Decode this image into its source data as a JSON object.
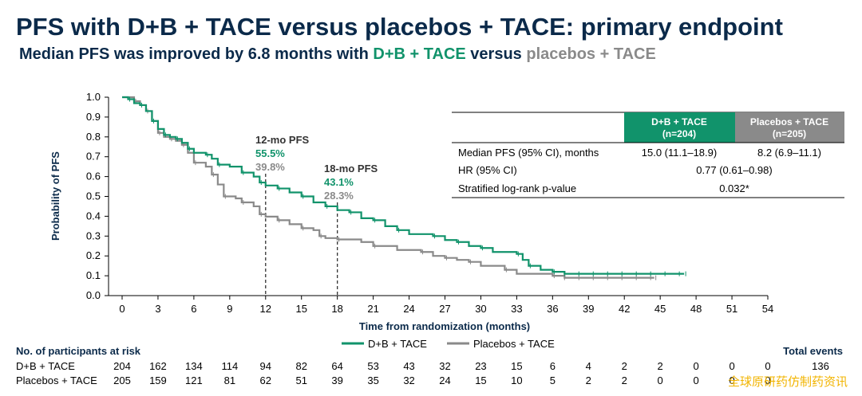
{
  "header": {
    "title": "PFS with D+B + TACE versus placebos + TACE: primary endpoint",
    "subtitle_pre": "Median PFS was improved by 6.8 months with ",
    "subtitle_arm1": "D+B + TACE",
    "subtitle_mid": " versus ",
    "subtitle_arm2": "placebos + TACE"
  },
  "colors": {
    "db": "#11936b",
    "placebo": "#8a8a8a",
    "title": "#0b2a4a"
  },
  "table": {
    "col1_header_a": "D+B + TACE",
    "col1_header_b": "(n=204)",
    "col2_header_a": "Placebos + TACE",
    "col2_header_b": "(n=205)",
    "rows": [
      {
        "label": "Median PFS (95% CI), months",
        "v1": "15.0 (11.1–18.9)",
        "v2": "8.2 (6.9–11.1)"
      },
      {
        "label": "HR (95% CI)",
        "merged": "0.77 (0.61–0.98)"
      },
      {
        "label": "Stratified log-rank p-value",
        "merged": "0.032*"
      }
    ]
  },
  "annotations": [
    {
      "title": "12-mo PFS",
      "db_value": "55.5%",
      "pl_value": "39.8%",
      "month": 12
    },
    {
      "title": "18-mo PFS",
      "db_value": "43.1%",
      "pl_value": "28.3%",
      "month": 18
    }
  ],
  "risk_table": {
    "header": "No. of participants at risk",
    "total_header": "Total events",
    "rows": [
      {
        "label": "D+B + TACE",
        "values": [
          "204",
          "162",
          "134",
          "114",
          "94",
          "82",
          "64",
          "53",
          "43",
          "32",
          "23",
          "15",
          "6",
          "4",
          "2",
          "2",
          "0",
          "0",
          "0"
        ],
        "total": "136"
      },
      {
        "label": "Placebos + TACE",
        "values": [
          "205",
          "159",
          "121",
          "81",
          "62",
          "51",
          "39",
          "35",
          "32",
          "24",
          "15",
          "10",
          "5",
          "2",
          "2",
          "0",
          "0",
          "0",
          "0"
        ],
        "total": ""
      }
    ]
  },
  "watermark": "全球原研药仿制药资讯",
  "chart_data": {
    "type": "line",
    "title": "",
    "xlabel": "Time from randomization (months)",
    "ylabel": "Probability of PFS",
    "xlim": [
      0,
      54
    ],
    "ylim": [
      0,
      1.0
    ],
    "xticks": [
      "0",
      "3",
      "6",
      "9",
      "12",
      "15",
      "18",
      "21",
      "24",
      "27",
      "30",
      "33",
      "36",
      "39",
      "42",
      "45",
      "48",
      "51",
      "54"
    ],
    "yticks": [
      "0.0",
      "0.1",
      "0.2",
      "0.3",
      "0.4",
      "0.5",
      "0.6",
      "0.7",
      "0.8",
      "0.9",
      "1.0"
    ],
    "legend": "bottom-center",
    "series": [
      {
        "name": "D+B + TACE",
        "points": [
          [
            0,
            1.0
          ],
          [
            0.5,
            0.99
          ],
          [
            1,
            0.97
          ],
          [
            1.5,
            0.96
          ],
          [
            2,
            0.93
          ],
          [
            2.5,
            0.88
          ],
          [
            3,
            0.84
          ],
          [
            3.5,
            0.81
          ],
          [
            4,
            0.8
          ],
          [
            4.5,
            0.79
          ],
          [
            5,
            0.77
          ],
          [
            5.5,
            0.74
          ],
          [
            6,
            0.72
          ],
          [
            7,
            0.71
          ],
          [
            7.5,
            0.69
          ],
          [
            8,
            0.66
          ],
          [
            9,
            0.65
          ],
          [
            10,
            0.62
          ],
          [
            11,
            0.6
          ],
          [
            11.5,
            0.57
          ],
          [
            12,
            0.555
          ],
          [
            13,
            0.54
          ],
          [
            14,
            0.52
          ],
          [
            15,
            0.5
          ],
          [
            16,
            0.47
          ],
          [
            17,
            0.45
          ],
          [
            18,
            0.431
          ],
          [
            19,
            0.42
          ],
          [
            20,
            0.39
          ],
          [
            21,
            0.38
          ],
          [
            22,
            0.35
          ],
          [
            23,
            0.33
          ],
          [
            24,
            0.31
          ],
          [
            26,
            0.3
          ],
          [
            27,
            0.28
          ],
          [
            28,
            0.27
          ],
          [
            29,
            0.25
          ],
          [
            30,
            0.24
          ],
          [
            31,
            0.22
          ],
          [
            33,
            0.21
          ],
          [
            33.5,
            0.18
          ],
          [
            34,
            0.15
          ],
          [
            35,
            0.13
          ],
          [
            36,
            0.12
          ],
          [
            37,
            0.11
          ],
          [
            47,
            0.11
          ]
        ]
      },
      {
        "name": "Placebos + TACE",
        "points": [
          [
            0,
            1.0
          ],
          [
            1,
            0.98
          ],
          [
            1.5,
            0.96
          ],
          [
            2,
            0.93
          ],
          [
            2.5,
            0.88
          ],
          [
            3,
            0.82
          ],
          [
            3.5,
            0.8
          ],
          [
            4,
            0.79
          ],
          [
            4.5,
            0.78
          ],
          [
            5,
            0.76
          ],
          [
            5.5,
            0.72
          ],
          [
            6,
            0.67
          ],
          [
            7,
            0.65
          ],
          [
            7.5,
            0.61
          ],
          [
            8,
            0.56
          ],
          [
            8.5,
            0.5
          ],
          [
            9.5,
            0.49
          ],
          [
            10,
            0.47
          ],
          [
            11,
            0.45
          ],
          [
            11.5,
            0.41
          ],
          [
            12,
            0.398
          ],
          [
            13,
            0.38
          ],
          [
            14,
            0.36
          ],
          [
            15,
            0.34
          ],
          [
            16,
            0.33
          ],
          [
            16.5,
            0.3
          ],
          [
            17,
            0.29
          ],
          [
            18,
            0.283
          ],
          [
            20,
            0.27
          ],
          [
            21,
            0.25
          ],
          [
            23,
            0.23
          ],
          [
            25,
            0.22
          ],
          [
            26,
            0.2
          ],
          [
            27,
            0.19
          ],
          [
            28,
            0.18
          ],
          [
            29,
            0.17
          ],
          [
            30,
            0.15
          ],
          [
            32,
            0.13
          ],
          [
            33,
            0.11
          ],
          [
            36,
            0.1
          ],
          [
            37,
            0.09
          ],
          [
            44.5,
            0.09
          ]
        ]
      }
    ]
  }
}
